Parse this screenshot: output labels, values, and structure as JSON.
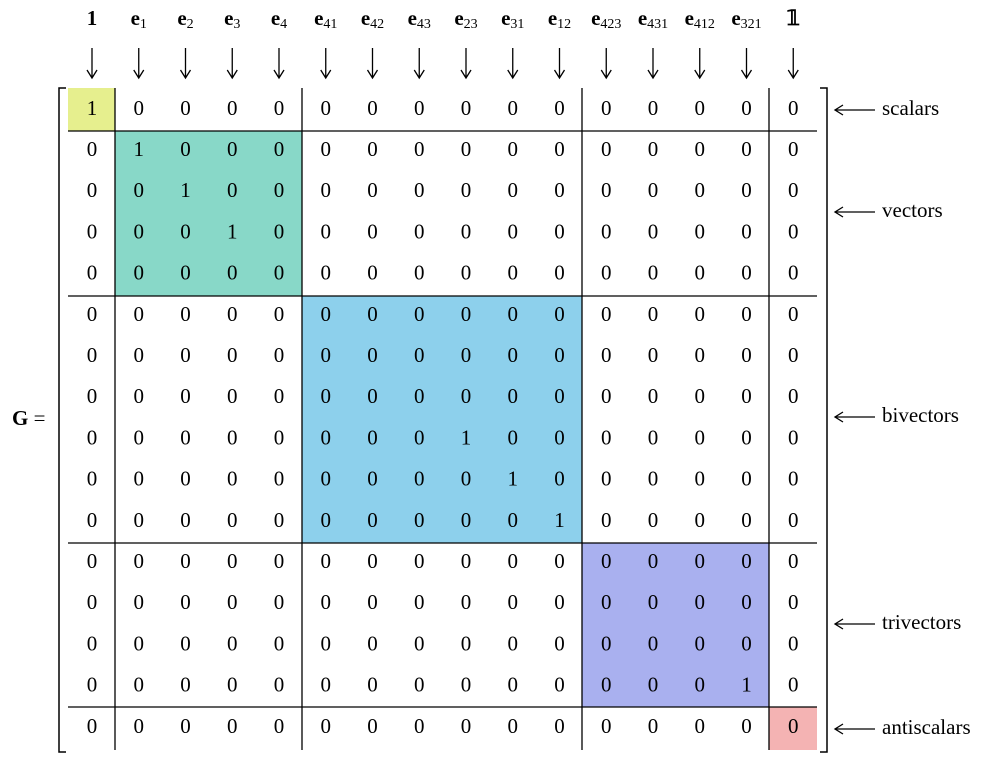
{
  "name": "G",
  "operator": "=",
  "columns": [
    {
      "symbol": "1"
    },
    {
      "symbol": "e",
      "index": "1"
    },
    {
      "symbol": "e",
      "index": "2"
    },
    {
      "symbol": "e",
      "index": "3"
    },
    {
      "symbol": "e",
      "index": "4"
    },
    {
      "symbol": "e",
      "index": "41"
    },
    {
      "symbol": "e",
      "index": "42"
    },
    {
      "symbol": "e",
      "index": "43"
    },
    {
      "symbol": "e",
      "index": "23"
    },
    {
      "symbol": "e",
      "index": "31"
    },
    {
      "symbol": "e",
      "index": "12"
    },
    {
      "symbol": "e",
      "index": "423"
    },
    {
      "symbol": "e",
      "index": "431"
    },
    {
      "symbol": "e",
      "index": "412"
    },
    {
      "symbol": "e",
      "index": "321"
    },
    {
      "symbol": "𝟙"
    }
  ],
  "rows": [
    [
      1,
      0,
      0,
      0,
      0,
      0,
      0,
      0,
      0,
      0,
      0,
      0,
      0,
      0,
      0,
      0
    ],
    [
      0,
      1,
      0,
      0,
      0,
      0,
      0,
      0,
      0,
      0,
      0,
      0,
      0,
      0,
      0,
      0
    ],
    [
      0,
      0,
      1,
      0,
      0,
      0,
      0,
      0,
      0,
      0,
      0,
      0,
      0,
      0,
      0,
      0
    ],
    [
      0,
      0,
      0,
      1,
      0,
      0,
      0,
      0,
      0,
      0,
      0,
      0,
      0,
      0,
      0,
      0
    ],
    [
      0,
      0,
      0,
      0,
      0,
      0,
      0,
      0,
      0,
      0,
      0,
      0,
      0,
      0,
      0,
      0
    ],
    [
      0,
      0,
      0,
      0,
      0,
      0,
      0,
      0,
      0,
      0,
      0,
      0,
      0,
      0,
      0,
      0
    ],
    [
      0,
      0,
      0,
      0,
      0,
      0,
      0,
      0,
      0,
      0,
      0,
      0,
      0,
      0,
      0,
      0
    ],
    [
      0,
      0,
      0,
      0,
      0,
      0,
      0,
      0,
      0,
      0,
      0,
      0,
      0,
      0,
      0,
      0
    ],
    [
      0,
      0,
      0,
      0,
      0,
      0,
      0,
      0,
      1,
      0,
      0,
      0,
      0,
      0,
      0,
      0
    ],
    [
      0,
      0,
      0,
      0,
      0,
      0,
      0,
      0,
      0,
      1,
      0,
      0,
      0,
      0,
      0,
      0
    ],
    [
      0,
      0,
      0,
      0,
      0,
      0,
      0,
      0,
      0,
      0,
      1,
      0,
      0,
      0,
      0,
      0
    ],
    [
      0,
      0,
      0,
      0,
      0,
      0,
      0,
      0,
      0,
      0,
      0,
      0,
      0,
      0,
      0,
      0
    ],
    [
      0,
      0,
      0,
      0,
      0,
      0,
      0,
      0,
      0,
      0,
      0,
      0,
      0,
      0,
      0,
      0
    ],
    [
      0,
      0,
      0,
      0,
      0,
      0,
      0,
      0,
      0,
      0,
      0,
      0,
      0,
      0,
      0,
      0
    ],
    [
      0,
      0,
      0,
      0,
      0,
      0,
      0,
      0,
      0,
      0,
      0,
      0,
      0,
      0,
      1,
      0
    ],
    [
      0,
      0,
      0,
      0,
      0,
      0,
      0,
      0,
      0,
      0,
      0,
      0,
      0,
      0,
      0,
      0
    ]
  ],
  "groups": [
    "scalars",
    "vectors",
    "bivectors",
    "trivectors",
    "antiscalars"
  ]
}
